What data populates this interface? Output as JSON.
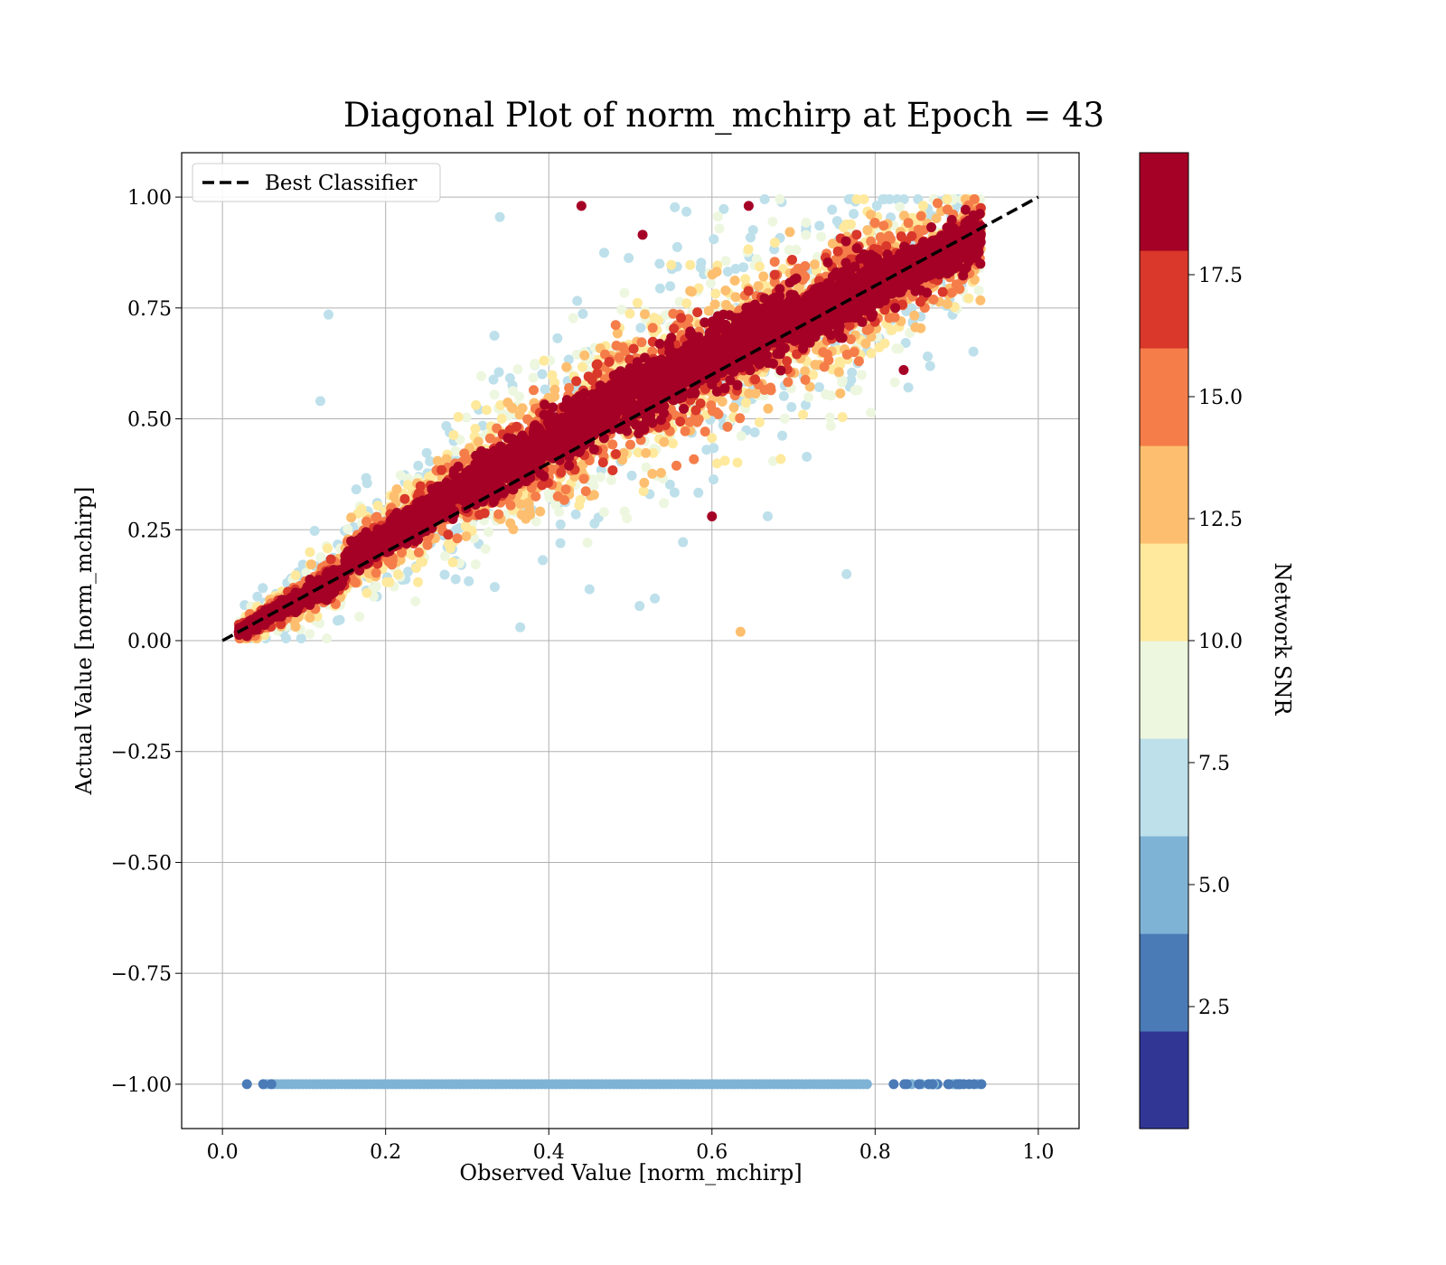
{
  "chart_data": {
    "type": "scatter",
    "title": "Diagonal Plot of norm_mchirp at Epoch = 43",
    "xlabel": "Observed Value [norm_mchirp]",
    "ylabel": "Actual Value [norm_mchirp]",
    "xlim": [
      -0.05,
      1.05
    ],
    "ylim": [
      -1.1,
      1.1
    ],
    "x_ticks": [
      "0.0",
      "0.2",
      "0.4",
      "0.6",
      "0.8",
      "1.0"
    ],
    "x_tick_values": [
      0.0,
      0.2,
      0.4,
      0.6,
      0.8,
      1.0
    ],
    "y_ticks": [
      "−1.00",
      "−0.75",
      "−0.50",
      "−0.25",
      "0.00",
      "0.25",
      "0.50",
      "0.75",
      "1.00"
    ],
    "y_tick_values": [
      -1.0,
      -0.75,
      -0.5,
      -0.25,
      0.0,
      0.25,
      0.5,
      0.75,
      1.0
    ],
    "grid": true,
    "legend": {
      "placement": "top-left",
      "entries": [
        {
          "label": "Best Classifier",
          "style": "dashed",
          "color": "#000000"
        }
      ]
    },
    "reference_line": {
      "name": "Best Classifier",
      "x": [
        0.0,
        1.0
      ],
      "y": [
        0.0,
        1.0
      ]
    },
    "colorbar": {
      "label": "Network SNR",
      "range": [
        0,
        20
      ],
      "ticks": [
        "2.5",
        "5.0",
        "7.5",
        "10.0",
        "12.5",
        "15.0",
        "17.5"
      ],
      "tick_values": [
        2.5,
        5.0,
        7.5,
        10.0,
        12.5,
        15.0,
        17.5
      ],
      "colors": [
        "#313695",
        "#4a7bb7",
        "#7fb3d5",
        "#bde0eb",
        "#edf7df",
        "#fee99d",
        "#fdbf6f",
        "#f57d4a",
        "#d9382a",
        "#a50026"
      ]
    },
    "series": [
      {
        "description_kind": "points",
        "points": [
          {
            "x": 0.34,
            "y": 0.955,
            "snr": 7
          },
          {
            "x": 0.13,
            "y": 0.735,
            "snr": 7
          },
          {
            "x": 0.44,
            "y": 0.98,
            "snr": 18
          },
          {
            "x": 0.515,
            "y": 0.915,
            "snr": 19
          },
          {
            "x": 0.645,
            "y": 0.98,
            "snr": 19
          },
          {
            "x": 0.835,
            "y": 0.61,
            "snr": 19
          },
          {
            "x": 0.6,
            "y": 0.28,
            "snr": 19
          },
          {
            "x": 0.635,
            "y": 0.02,
            "snr": 12
          },
          {
            "x": 0.765,
            "y": 0.15,
            "snr": 7
          },
          {
            "x": 0.12,
            "y": 0.54,
            "snr": 7
          },
          {
            "x": 0.365,
            "y": 0.03,
            "snr": 7
          },
          {
            "x": 0.53,
            "y": 0.095,
            "snr": 7
          }
        ]
      },
      {
        "description_kind": "band",
        "note": "dense cloud of points along y = x from x 0.02 to 0.93; high SNR near the diagonal, lower SNR farther out",
        "x_range": [
          0.02,
          0.93
        ]
      },
      {
        "description_kind": "row",
        "note": "row of points at y = -1.00 for x 0.03 to 0.94, mostly SNR about 5; SNR about 2 at the ends",
        "y": -1.0,
        "x_range": [
          0.03,
          0.94
        ]
      }
    ]
  }
}
